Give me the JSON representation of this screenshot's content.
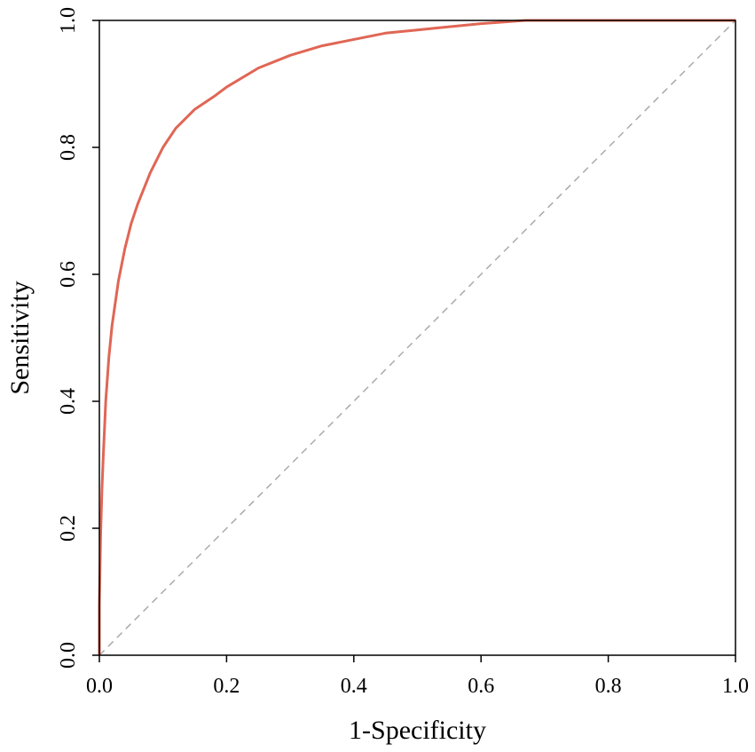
{
  "chart_data": {
    "type": "line",
    "title": "",
    "xlabel": "1-Specificity",
    "ylabel": "Sensitivity",
    "xlim": [
      0,
      1
    ],
    "ylim": [
      0,
      1
    ],
    "x_ticks": [
      "0.0",
      "0.2",
      "0.4",
      "0.6",
      "0.8",
      "1.0"
    ],
    "y_ticks": [
      "0.0",
      "0.2",
      "0.4",
      "0.6",
      "0.8",
      "1.0"
    ],
    "grid": false,
    "legend": "none",
    "series": [
      {
        "color": "#e06655",
        "x": [
          0,
          0,
          0.002,
          0.004,
          0.006,
          0.01,
          0.015,
          0.02,
          0.03,
          0.04,
          0.05,
          0.06,
          0.08,
          0.1,
          0.12,
          0.15,
          0.18,
          0.2,
          0.25,
          0.3,
          0.35,
          0.4,
          0.45,
          0.5,
          0.55,
          0.6,
          0.67,
          0.75,
          1.0
        ],
        "y": [
          0,
          0.08,
          0.19,
          0.26,
          0.31,
          0.4,
          0.47,
          0.52,
          0.59,
          0.64,
          0.68,
          0.71,
          0.76,
          0.8,
          0.83,
          0.86,
          0.88,
          0.895,
          0.925,
          0.945,
          0.96,
          0.97,
          0.98,
          0.985,
          0.99,
          0.995,
          1.0,
          1.0,
          1.0
        ]
      },
      {
        "color": "#aaaaaa",
        "style": "dashed",
        "x": [
          0,
          1
        ],
        "y": [
          0,
          1
        ]
      }
    ]
  }
}
